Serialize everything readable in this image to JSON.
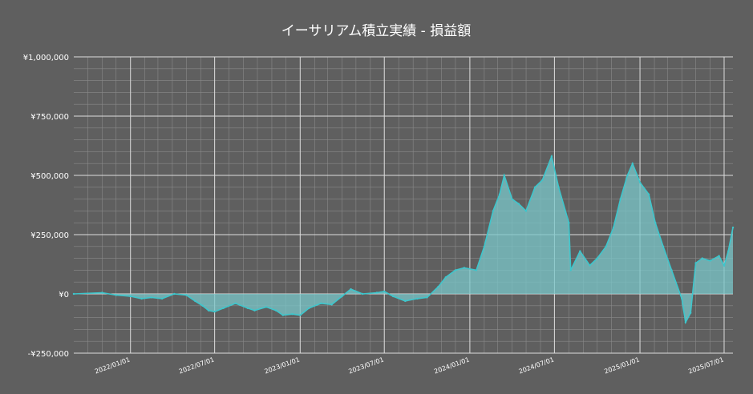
{
  "chart_data": {
    "type": "area",
    "title": "イーサリアム積立実績  -  損益額",
    "xlabel": "",
    "ylabel": "",
    "ylim": [
      -250000,
      1000000
    ],
    "y_ticks": [
      1000000,
      750000,
      500000,
      250000,
      0,
      -250000
    ],
    "y_tick_labels": [
      "¥1,000,000",
      "¥750,000",
      "¥500,000",
      "¥250,000",
      "¥0",
      "-¥250,000"
    ],
    "x_range": [
      "2021-09-01",
      "2025-07-20"
    ],
    "x_ticks": [
      "2022-01-01",
      "2022-07-01",
      "2023-01-01",
      "2023-07-01",
      "2024-01-01",
      "2024-07-01",
      "2025-01-01",
      "2025-07-01"
    ],
    "x_tick_labels": [
      "2022/01/01",
      "2022/07/01",
      "2023/01/01",
      "2023/07/01",
      "2024/01/01",
      "2024/07/01",
      "2025/01/01",
      "2025/07/01"
    ],
    "grid": true,
    "colors": {
      "background": "#5f5f5f",
      "line": "#3ec6cc",
      "fill": "#79c7c9",
      "grid": "#8a8a8a"
    },
    "series": [
      {
        "x": [
          "2021-09-01",
          "2021-11-01",
          "2021-12-01",
          "2022-01-01",
          "2022-01-25",
          "2022-02-15",
          "2022-03-10",
          "2022-04-05",
          "2022-05-01",
          "2022-05-20",
          "2022-06-05",
          "2022-06-18",
          "2022-07-01",
          "2022-07-20",
          "2022-08-15",
          "2022-09-10",
          "2022-09-25",
          "2022-10-20",
          "2022-11-10",
          "2022-11-25",
          "2022-12-15",
          "2023-01-01",
          "2023-01-20",
          "2023-02-15",
          "2023-03-10",
          "2023-04-01",
          "2023-04-20",
          "2023-05-15",
          "2023-06-15",
          "2023-07-01",
          "2023-07-20",
          "2023-08-15",
          "2023-09-10",
          "2023-10-01",
          "2023-10-25",
          "2023-11-10",
          "2023-12-01",
          "2023-12-20",
          "2024-01-15",
          "2024-02-01",
          "2024-02-20",
          "2024-03-05",
          "2024-03-15",
          "2024-04-01",
          "2024-04-15",
          "2024-05-01",
          "2024-05-20",
          "2024-06-05",
          "2024-06-25",
          "2024-07-10",
          "2024-08-01",
          "2024-08-05",
          "2024-08-25",
          "2024-09-15",
          "2024-10-01",
          "2024-10-20",
          "2024-11-05",
          "2024-11-20",
          "2024-12-05",
          "2024-12-16",
          "2025-01-01",
          "2025-01-20",
          "2025-02-03",
          "2025-02-20",
          "2025-03-10",
          "2025-04-01",
          "2025-04-09",
          "2025-04-20",
          "2025-05-01",
          "2025-05-15",
          "2025-06-01",
          "2025-06-20",
          "2025-07-01",
          "2025-07-10",
          "2025-07-20"
        ],
        "values": [
          0,
          5000,
          -5000,
          -10000,
          -20000,
          -15000,
          -20000,
          0,
          -5000,
          -30000,
          -50000,
          -70000,
          -75000,
          -60000,
          -40000,
          -60000,
          -70000,
          -55000,
          -70000,
          -90000,
          -85000,
          -90000,
          -60000,
          -40000,
          -45000,
          -10000,
          20000,
          0,
          5000,
          10000,
          -10000,
          -30000,
          -20000,
          -15000,
          30000,
          70000,
          100000,
          110000,
          100000,
          200000,
          350000,
          420000,
          500000,
          400000,
          380000,
          350000,
          450000,
          480000,
          580000,
          450000,
          300000,
          100000,
          180000,
          120000,
          150000,
          200000,
          280000,
          400000,
          500000,
          550000,
          470000,
          420000,
          300000,
          200000,
          100000,
          -20000,
          -120000,
          -80000,
          130000,
          150000,
          140000,
          160000,
          120000,
          180000,
          280000
        ]
      }
    ]
  }
}
